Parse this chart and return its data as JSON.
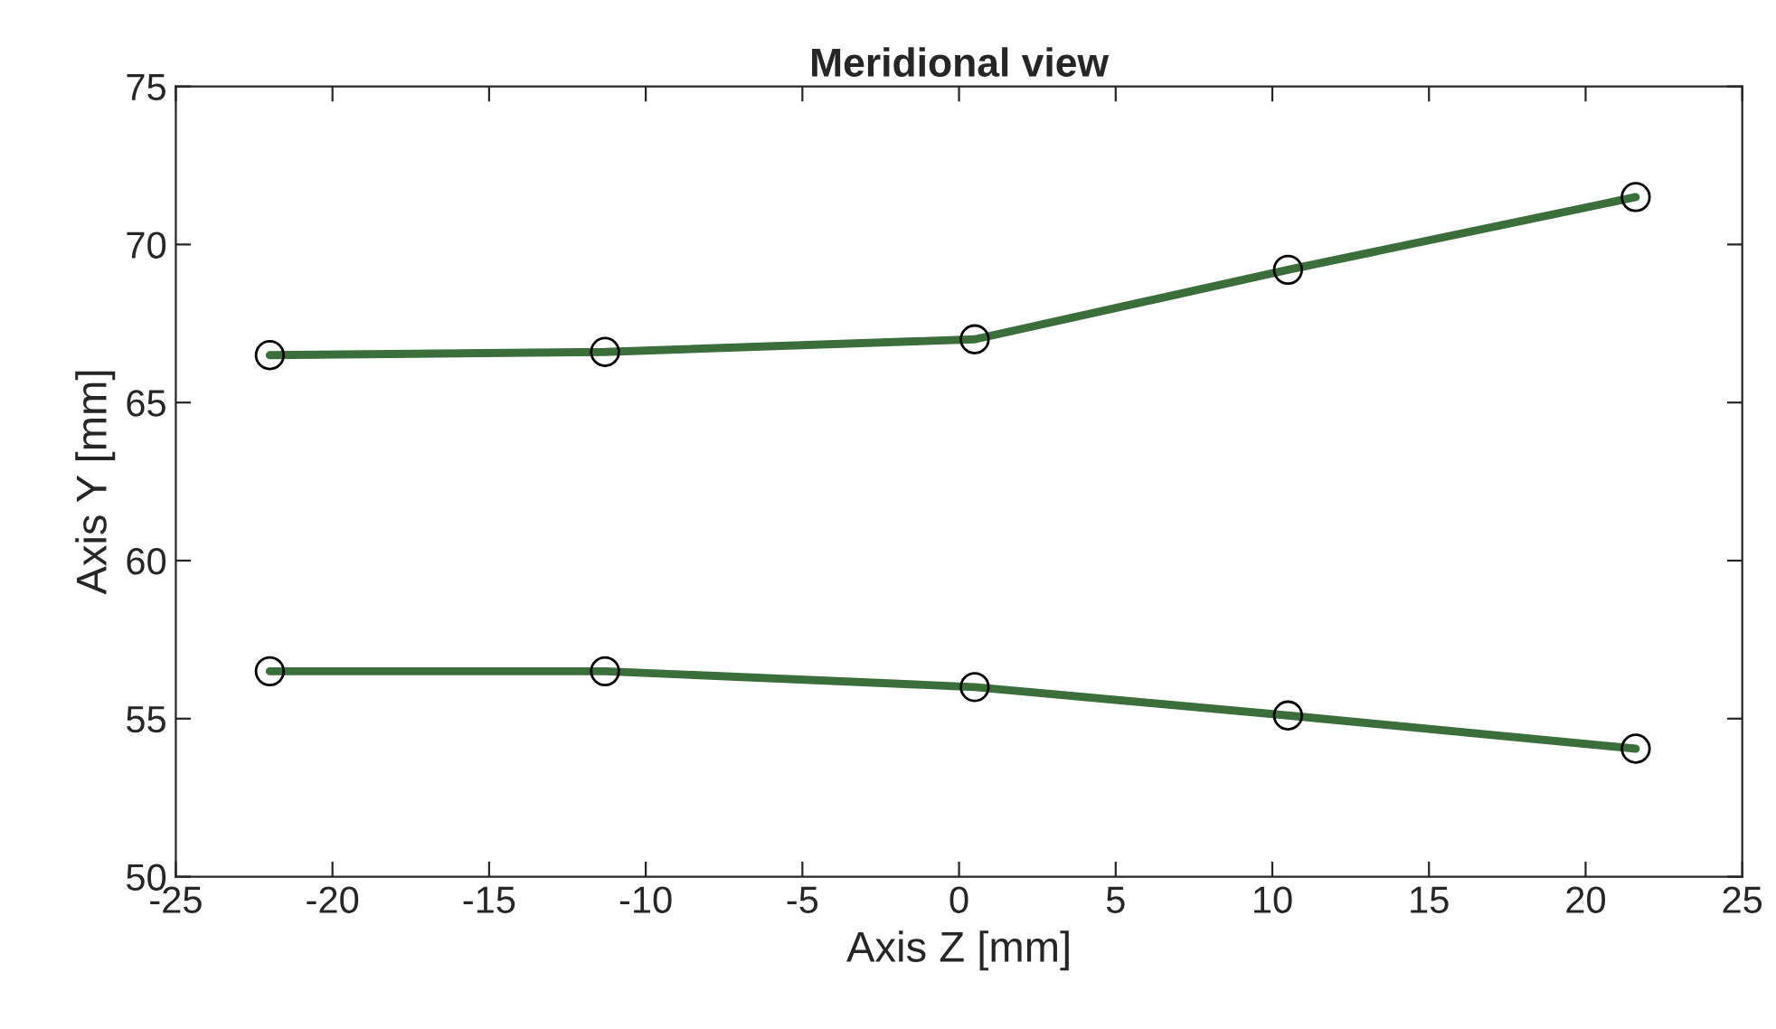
{
  "chart_data": {
    "type": "line",
    "title": "Meridional view",
    "xlabel": "Axis Z [mm]",
    "ylabel": "Axis Y [mm]",
    "series": [
      {
        "color": "#3b6e3b",
        "x": [
          -22.0,
          -11.3,
          0.5,
          10.5,
          21.6
        ],
        "values": [
          66.5,
          66.6,
          67.0,
          69.2,
          71.5
        ]
      },
      {
        "color": "#3b6e3b",
        "x": [
          -22.0,
          -11.3,
          0.5,
          10.5,
          21.6
        ],
        "values": [
          56.5,
          56.5,
          56.0,
          55.1,
          54.05
        ]
      }
    ],
    "xlim": [
      -25,
      25
    ],
    "xticks": [
      -25,
      -20,
      -15,
      -10,
      -5,
      0,
      5,
      10,
      15,
      20,
      25
    ],
    "ylim": [
      50,
      75
    ],
    "yticks": [
      50,
      55,
      60,
      65,
      70,
      75
    ],
    "marker": "circle",
    "grid": false
  }
}
